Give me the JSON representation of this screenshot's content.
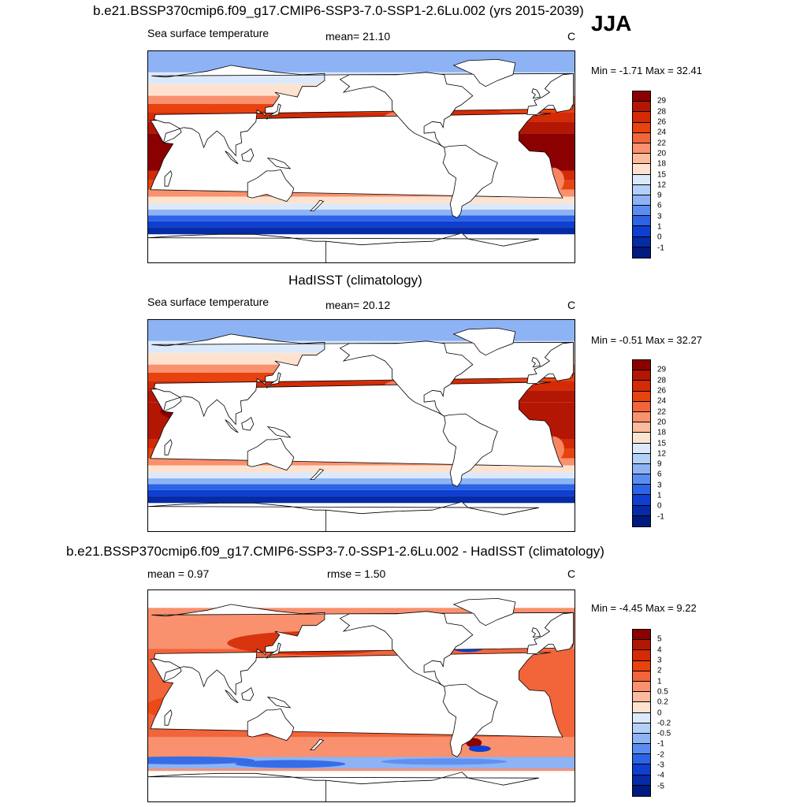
{
  "season": "JJA",
  "panels": [
    {
      "title": "b.e21.BSSP370cmip6.f09_g17.CMIP6-SSP3-7.0-SSP1-2.6Lu.002 (yrs 2015-2039)",
      "left_label": "Sea surface temperature",
      "center_label": "mean=  21.10",
      "units": "C",
      "minmax": "Min =  -1.71 Max =  32.41",
      "colorbar_labels": [
        "29",
        "28",
        "26",
        "24",
        "22",
        "20",
        "18",
        "15",
        "12",
        "9",
        "6",
        "3",
        "1",
        "0",
        "-1"
      ],
      "colorbar_colors": [
        "#8b0000",
        "#b41604",
        "#d42a06",
        "#e8420e",
        "#f2643a",
        "#f9906e",
        "#fcbb9c",
        "#fde3cf",
        "#dbe9fb",
        "#b3d0f9",
        "#8db3f5",
        "#5b8cf0",
        "#2d64e6",
        "#0f3fd0",
        "#062ba6",
        "#001a80"
      ],
      "field": "sst_model"
    },
    {
      "title": "HadISST (climatology)",
      "left_label": "Sea surface temperature",
      "center_label": "mean=  20.12",
      "units": "C",
      "minmax": "Min =  -0.51 Max =  32.27",
      "colorbar_labels": [
        "29",
        "28",
        "26",
        "24",
        "22",
        "20",
        "18",
        "15",
        "12",
        "9",
        "6",
        "3",
        "1",
        "0",
        "-1"
      ],
      "colorbar_colors": [
        "#8b0000",
        "#b41604",
        "#d42a06",
        "#e8420e",
        "#f2643a",
        "#f9906e",
        "#fcbb9c",
        "#fde3cf",
        "#dbe9fb",
        "#b3d0f9",
        "#8db3f5",
        "#5b8cf0",
        "#2d64e6",
        "#0f3fd0",
        "#062ba6",
        "#001a80"
      ],
      "field": "sst_obs"
    },
    {
      "title": "b.e21.BSSP370cmip6.f09_g17.CMIP6-SSP3-7.0-SSP1-2.6Lu.002 - HadISST (climatology)",
      "left_label": "mean =   0.97",
      "center_label": "rmse =   1.50",
      "units": "C",
      "minmax": "Min =  -4.45 Max =   9.22",
      "colorbar_labels": [
        "5",
        "4",
        "3",
        "2",
        "1",
        "0.5",
        "0.2",
        "0",
        "-0.2",
        "-0.5",
        "-1",
        "-2",
        "-3",
        "-4",
        "-5"
      ],
      "colorbar_colors": [
        "#8b0000",
        "#b41604",
        "#d42a06",
        "#e8420e",
        "#f2643a",
        "#f9906e",
        "#fcbb9c",
        "#fde3cf",
        "#dbe9fb",
        "#b3d0f9",
        "#8db3f5",
        "#5b8cf0",
        "#2d64e6",
        "#0f3fd0",
        "#062ba6",
        "#001a80"
      ],
      "field": "sst_diff"
    }
  ]
}
